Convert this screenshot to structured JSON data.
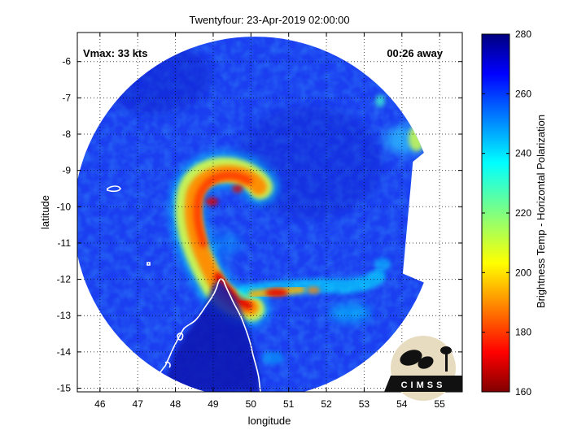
{
  "chart_data": {
    "type": "heatmap",
    "title": "Twentyfour: 23-Apr-2019 02:00:00",
    "xlabel": "longitude",
    "ylabel": "latitude",
    "xlim": [
      45.4,
      55.6
    ],
    "ylim": [
      -15.1,
      -5.2
    ],
    "x_ticks": [
      46,
      47,
      48,
      49,
      50,
      51,
      52,
      53,
      54,
      55
    ],
    "y_ticks": [
      -6,
      -7,
      -8,
      -9,
      -10,
      -11,
      -12,
      -13,
      -14,
      -15
    ],
    "grid": true,
    "annotations": {
      "vmax": "Vmax: 33 kts",
      "time_away": "00:26 away"
    },
    "colorbar": {
      "label": "Brightness Temp - Horizontal Polarization",
      "range": [
        160,
        280
      ],
      "ticks": [
        160,
        180,
        200,
        220,
        240,
        260,
        280
      ],
      "colormap": "jet"
    },
    "swath": {
      "background_value": 263,
      "center": [
        50.1,
        -10.3
      ],
      "radius_deg": 4.8,
      "east_edge_lon": 54.6
    },
    "features": [
      {
        "name": "spiral band",
        "lon": 49.5,
        "lat": -9.3,
        "value": 192
      },
      {
        "name": "spiral band",
        "lon": 49.2,
        "lat": -9.6,
        "value": 182
      },
      {
        "name": "spiral band",
        "lon": 48.8,
        "lat": -10.2,
        "value": 190
      },
      {
        "name": "spiral band",
        "lon": 48.7,
        "lat": -10.8,
        "value": 186
      },
      {
        "name": "spiral band",
        "lon": 49.0,
        "lat": -11.5,
        "value": 200
      },
      {
        "name": "spiral band",
        "lon": 49.4,
        "lat": -12.2,
        "value": 178
      },
      {
        "name": "spiral band",
        "lon": 49.8,
        "lat": -12.7,
        "value": 172
      },
      {
        "name": "rain band",
        "lon": 50.6,
        "lat": -12.4,
        "value": 182
      },
      {
        "name": "rain band",
        "lon": 51.2,
        "lat": -12.3,
        "value": 178
      },
      {
        "name": "rain band",
        "lon": 51.9,
        "lat": -12.3,
        "value": 200
      },
      {
        "name": "cell",
        "lon": 54.2,
        "lat": -8.0,
        "value": 225
      },
      {
        "name": "cell",
        "lon": 53.6,
        "lat": -8.2,
        "value": 240
      }
    ]
  },
  "logo": {
    "text": "CIMSS"
  }
}
